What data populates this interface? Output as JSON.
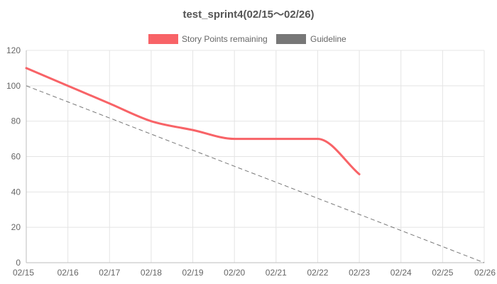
{
  "chart_data": {
    "type": "line",
    "title": "test_sprint4(02/15～02/26)",
    "categories": [
      "02/15",
      "02/16",
      "02/17",
      "02/18",
      "02/19",
      "02/20",
      "02/21",
      "02/22",
      "02/23",
      "02/24",
      "02/25",
      "02/26"
    ],
    "series": [
      {
        "name": "Story Points remaining",
        "color": "#f86367",
        "line_style": "solid",
        "values": [
          110,
          100,
          90,
          80,
          75,
          70,
          70,
          70,
          50,
          null,
          null,
          null
        ]
      },
      {
        "name": "Guideline",
        "color": "#777777",
        "line_style": "dashed",
        "values": [
          100,
          90.9,
          81.8,
          72.7,
          63.6,
          54.5,
          45.5,
          36.4,
          27.3,
          18.2,
          9.1,
          0
        ]
      }
    ],
    "y_ticks": [
      "0",
      "20",
      "40",
      "60",
      "80",
      "100",
      "120"
    ],
    "ylim": [
      0,
      120
    ],
    "grid": true,
    "legend_position": "top-center",
    "xlabel": "",
    "ylabel": ""
  }
}
